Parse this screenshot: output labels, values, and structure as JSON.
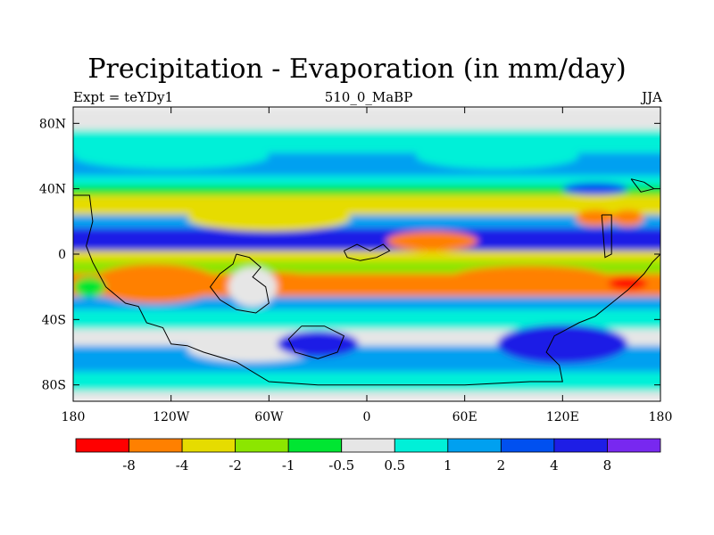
{
  "chart_data": {
    "type": "heatmap",
    "title": "Precipitation - Evaporation (in mm/day)",
    "subtitle_left": "Expt = teYDy1",
    "subtitle_center": "510_0_MaBP",
    "subtitle_right": "JJA",
    "x_ticks": [
      "180",
      "120W",
      "60W",
      "0",
      "60E",
      "120E",
      "180"
    ],
    "x_tick_values": [
      -180,
      -120,
      -60,
      0,
      60,
      120,
      180
    ],
    "y_ticks": [
      "80N",
      "40N",
      "0",
      "40S",
      "80S"
    ],
    "y_tick_values": [
      80,
      40,
      0,
      -40,
      -80
    ],
    "xlim": [
      -180,
      180
    ],
    "ylim": [
      -90,
      90
    ],
    "colorbar": {
      "colors": [
        "#ff0000",
        "#ff8000",
        "#e6dc00",
        "#8ce600",
        "#00e632",
        "#e6e6e6",
        "#00f0d8",
        "#00a0f0",
        "#0050f0",
        "#1e1ee6",
        "#7828f0"
      ],
      "labels": [
        "-8",
        "-4",
        "-2",
        "-1",
        "-0.5",
        "0.5",
        "1",
        "2",
        "4",
        "8"
      ]
    },
    "bands": [
      {
        "lat": [
          90,
          76
        ],
        "color": "#e6e6e6"
      },
      {
        "lat": [
          76,
          62
        ],
        "color": "#00f0d8"
      },
      {
        "lat": [
          62,
          48
        ],
        "color": "#00a0f0"
      },
      {
        "lat": [
          48,
          42
        ],
        "color": "#00f0d8"
      },
      {
        "lat": [
          42,
          36
        ],
        "color": "#00e632"
      },
      {
        "lat": [
          36,
          24
        ],
        "color": "#e6dc00"
      },
      {
        "lat": [
          24,
          16
        ],
        "color": "#00a0f0"
      },
      {
        "lat": [
          16,
          2
        ],
        "color": "#1e1ee6"
      },
      {
        "lat": [
          2,
          -4
        ],
        "color": "#e6dc00"
      },
      {
        "lat": [
          -4,
          -12
        ],
        "color": "#8ce600"
      },
      {
        "lat": [
          -12,
          -26
        ],
        "color": "#ff8000"
      },
      {
        "lat": [
          -26,
          -34
        ],
        "color": "#00a0f0"
      },
      {
        "lat": [
          -34,
          -46
        ],
        "color": "#00f0d8"
      },
      {
        "lat": [
          -46,
          -56
        ],
        "color": "#e6e6e6"
      },
      {
        "lat": [
          -56,
          -72
        ],
        "color": "#00a0f0"
      },
      {
        "lat": [
          -72,
          -84
        ],
        "color": "#00f0d8"
      },
      {
        "lat": [
          -84,
          -90
        ],
        "color": "#e6e6e6"
      }
    ],
    "patches": [
      {
        "lon": -120,
        "lat": 60,
        "rx": 60,
        "ry": 8,
        "color": "#00f0d8"
      },
      {
        "lon": 80,
        "lat": 60,
        "rx": 50,
        "ry": 8,
        "color": "#00f0d8"
      },
      {
        "lon": -60,
        "lat": 22,
        "rx": 50,
        "ry": 8,
        "color": "#e6dc00"
      },
      {
        "lon": 40,
        "lat": 8,
        "rx": 28,
        "ry": 6,
        "color": "#ff8000"
      },
      {
        "lon": 140,
        "lat": 22,
        "rx": 12,
        "ry": 5,
        "color": "#ff8000"
      },
      {
        "lon": 160,
        "lat": 22,
        "rx": 10,
        "ry": 5,
        "color": "#ff8000"
      },
      {
        "lon": 100,
        "lat": -15,
        "rx": 50,
        "ry": 8,
        "color": "#ff8000"
      },
      {
        "lon": 160,
        "lat": -18,
        "rx": 12,
        "ry": 4,
        "color": "#ff0000"
      },
      {
        "lon": -130,
        "lat": -18,
        "rx": 40,
        "ry": 12,
        "color": "#ff8000"
      },
      {
        "lon": -55,
        "lat": -18,
        "rx": 28,
        "ry": 7,
        "color": "#ff8000"
      },
      {
        "lon": -70,
        "lat": -20,
        "rx": 15,
        "ry": 12,
        "color": "#e6e6e6"
      },
      {
        "lon": -70,
        "lat": -58,
        "rx": 40,
        "ry": 8,
        "color": "#e6e6e6"
      },
      {
        "lon": -30,
        "lat": -55,
        "rx": 25,
        "ry": 8,
        "color": "#1e1ee6"
      },
      {
        "lon": 120,
        "lat": -55,
        "rx": 40,
        "ry": 12,
        "color": "#1e1ee6"
      },
      {
        "lon": -170,
        "lat": -20,
        "rx": 10,
        "ry": 6,
        "color": "#00e632"
      },
      {
        "lon": 140,
        "lat": 40,
        "rx": 20,
        "ry": 4,
        "color": "#0050f0"
      }
    ]
  }
}
